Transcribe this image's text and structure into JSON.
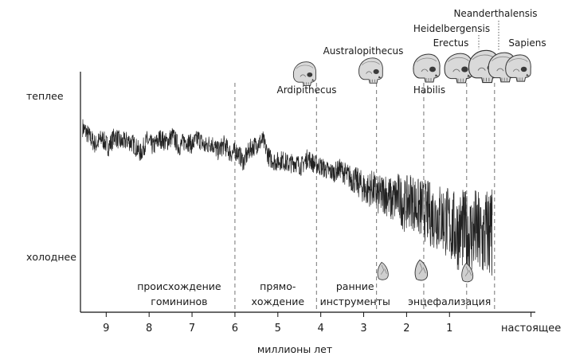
{
  "chart_data": {
    "type": "line",
    "title": "",
    "xlabel": "миллионы лет",
    "ylabel": "",
    "y_labels": {
      "top": "теплее",
      "bottom": "холоднее"
    },
    "x_ticks": [
      {
        "value": 9,
        "label": "9"
      },
      {
        "value": 8,
        "label": "8"
      },
      {
        "value": 7,
        "label": "7"
      },
      {
        "value": 6,
        "label": "6"
      },
      {
        "value": 5,
        "label": "5"
      },
      {
        "value": 4,
        "label": "4"
      },
      {
        "value": 3,
        "label": "3"
      },
      {
        "value": 2,
        "label": "2"
      },
      {
        "value": 1,
        "label": "1"
      },
      {
        "value": -0.9,
        "label": "настоящее"
      }
    ],
    "xlim": [
      9.6,
      -1.0
    ],
    "ylim": [
      0,
      1
    ],
    "x_reversed": true,
    "series": [
      {
        "values": [
          [
            9.55,
            0.78
          ],
          [
            9.4,
            0.74
          ],
          [
            9.25,
            0.7
          ],
          [
            9.1,
            0.73
          ],
          [
            8.95,
            0.69
          ],
          [
            8.8,
            0.74
          ],
          [
            8.65,
            0.71
          ],
          [
            8.5,
            0.72
          ],
          [
            8.35,
            0.7
          ],
          [
            8.2,
            0.66
          ],
          [
            8.05,
            0.72
          ],
          [
            7.9,
            0.69
          ],
          [
            7.75,
            0.73
          ],
          [
            7.6,
            0.71
          ],
          [
            7.45,
            0.74
          ],
          [
            7.3,
            0.69
          ],
          [
            7.15,
            0.72
          ],
          [
            7.0,
            0.7
          ],
          [
            6.85,
            0.73
          ],
          [
            6.7,
            0.69
          ],
          [
            6.55,
            0.71
          ],
          [
            6.4,
            0.67
          ],
          [
            6.25,
            0.7
          ],
          [
            6.1,
            0.66
          ],
          [
            5.95,
            0.67
          ],
          [
            5.8,
            0.62
          ],
          [
            5.65,
            0.68
          ],
          [
            5.5,
            0.7
          ],
          [
            5.35,
            0.72
          ],
          [
            5.2,
            0.64
          ],
          [
            5.05,
            0.62
          ],
          [
            4.9,
            0.63
          ],
          [
            4.75,
            0.61
          ],
          [
            4.6,
            0.62
          ],
          [
            4.45,
            0.6
          ],
          [
            4.3,
            0.64
          ],
          [
            4.15,
            0.61
          ],
          [
            4.0,
            0.6
          ],
          [
            3.85,
            0.58
          ],
          [
            3.7,
            0.57
          ],
          [
            3.55,
            0.59
          ],
          [
            3.4,
            0.56
          ],
          [
            3.25,
            0.54
          ],
          [
            3.1,
            0.52
          ],
          [
            2.95,
            0.49
          ],
          [
            2.8,
            0.5
          ],
          [
            2.65,
            0.46
          ],
          [
            2.5,
            0.48
          ],
          [
            2.35,
            0.44
          ],
          [
            2.2,
            0.46
          ],
          [
            2.05,
            0.42
          ],
          [
            1.9,
            0.45
          ],
          [
            1.75,
            0.41
          ],
          [
            1.6,
            0.4
          ],
          [
            1.45,
            0.38
          ],
          [
            1.3,
            0.37
          ],
          [
            1.15,
            0.36
          ],
          [
            1.0,
            0.33
          ],
          [
            0.85,
            0.3
          ],
          [
            0.7,
            0.31
          ],
          [
            0.55,
            0.28
          ],
          [
            0.4,
            0.3
          ],
          [
            0.25,
            0.26
          ],
          [
            0.1,
            0.3
          ],
          [
            0.0,
            0.28
          ]
        ]
      }
    ],
    "divider_lines": [
      6.0,
      4.1,
      2.7,
      1.6,
      0.6,
      -0.05
    ],
    "annotations": {
      "phases": [
        {
          "x": 7.3,
          "lines": [
            "происхождение",
            "гомининов"
          ]
        },
        {
          "x": 5.0,
          "lines": [
            "прямо-",
            "хождение"
          ]
        },
        {
          "x": 3.2,
          "lines": [
            "ранние",
            "инструменты"
          ]
        },
        {
          "x": 1.0,
          "lines": [
            "энцефализация"
          ]
        }
      ],
      "species": [
        {
          "name": "Ardipithecus",
          "x": 4.95,
          "skull_size": 0.85
        },
        {
          "name": "Australopithecus",
          "x": 3.0,
          "skull_size": 0.9
        },
        {
          "name": "Habilis",
          "x": 2.05,
          "skull_size": 1.0
        },
        {
          "name": "Erectus",
          "x": 1.6,
          "skull_size": 1.05
        },
        {
          "name": "Heidelbergensis",
          "x": 1.0,
          "skull_size": 1.15
        },
        {
          "name": "Neanderthalensis",
          "x": 0.55,
          "skull_size": 1.05
        },
        {
          "name": "Sapiens",
          "x": 0.1,
          "skull_size": 0.95
        }
      ],
      "tools_at": [
        2.9,
        1.95,
        0.95
      ]
    }
  }
}
